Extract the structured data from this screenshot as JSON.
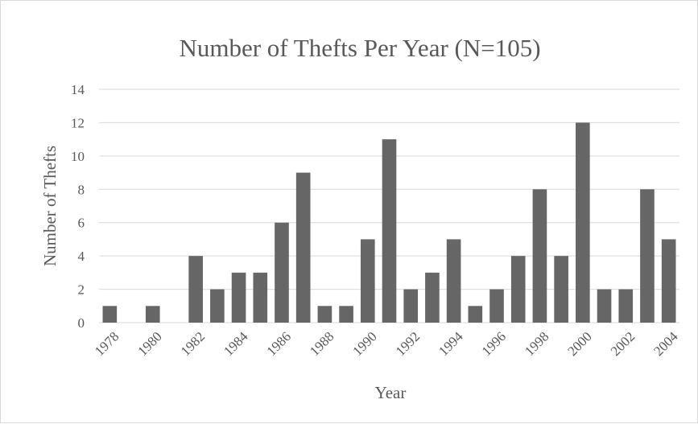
{
  "chart_data": {
    "type": "bar",
    "title": "Number of Thefts Per Year (N=105)",
    "xlabel": "Year",
    "ylabel": "Number of Thefts",
    "categories": [
      "1978",
      "1979",
      "1980",
      "1981",
      "1982",
      "1983",
      "1984",
      "1985",
      "1986",
      "1987",
      "1988",
      "1989",
      "1990",
      "1991",
      "1992",
      "1993",
      "1994",
      "1995",
      "1996",
      "1997",
      "1998",
      "1999",
      "2000",
      "2001",
      "2002",
      "2003",
      "2004"
    ],
    "x_tick_labels": [
      "1978",
      "1980",
      "1982",
      "1984",
      "1986",
      "1988",
      "1990",
      "1992",
      "1994",
      "1996",
      "1998",
      "2000",
      "2002",
      "2004"
    ],
    "values": [
      1,
      0,
      1,
      0,
      4,
      2,
      3,
      3,
      6,
      9,
      1,
      1,
      5,
      11,
      2,
      3,
      5,
      1,
      2,
      4,
      8,
      4,
      12,
      2,
      2,
      8,
      5
    ],
    "y_ticks": [
      0,
      2,
      4,
      6,
      8,
      10,
      12,
      14
    ],
    "ylim": [
      0,
      14
    ],
    "grid": "horizontal",
    "legend": "none",
    "bar_color": "#666666",
    "text_color": "#595959",
    "grid_color": "#d9d9d9"
  }
}
